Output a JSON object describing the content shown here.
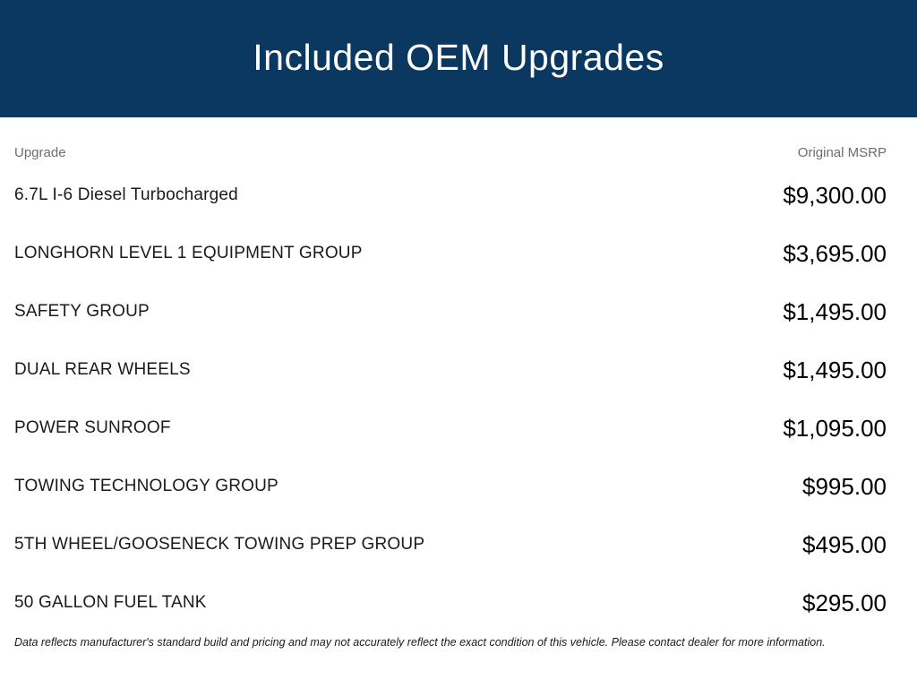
{
  "header": {
    "title": "Included OEM Upgrades",
    "background_color": "#0b3861",
    "title_color": "#ffffff"
  },
  "table": {
    "columns": {
      "upgrade_label": "Upgrade",
      "msrp_label": "Original MSRP"
    },
    "rows": [
      {
        "upgrade": "6.7L I-6 Diesel Turbocharged",
        "msrp": "$9,300.00"
      },
      {
        "upgrade": "LONGHORN LEVEL 1 EQUIPMENT GROUP",
        "msrp": "$3,695.00"
      },
      {
        "upgrade": "SAFETY GROUP",
        "msrp": "$1,495.00"
      },
      {
        "upgrade": "DUAL REAR WHEELS",
        "msrp": "$1,495.00"
      },
      {
        "upgrade": "POWER SUNROOF",
        "msrp": "$1,095.00"
      },
      {
        "upgrade": "TOWING TECHNOLOGY GROUP",
        "msrp": "$995.00"
      },
      {
        "upgrade": "5TH WHEEL/GOOSENECK TOWING PREP GROUP",
        "msrp": "$495.00"
      },
      {
        "upgrade": "50 GALLON FUEL TANK",
        "msrp": "$295.00"
      }
    ]
  },
  "footer": {
    "disclaimer": "Data reflects manufacturer's standard build and pricing and may not accurately reflect the exact condition of this vehicle. Please contact dealer for more information."
  }
}
